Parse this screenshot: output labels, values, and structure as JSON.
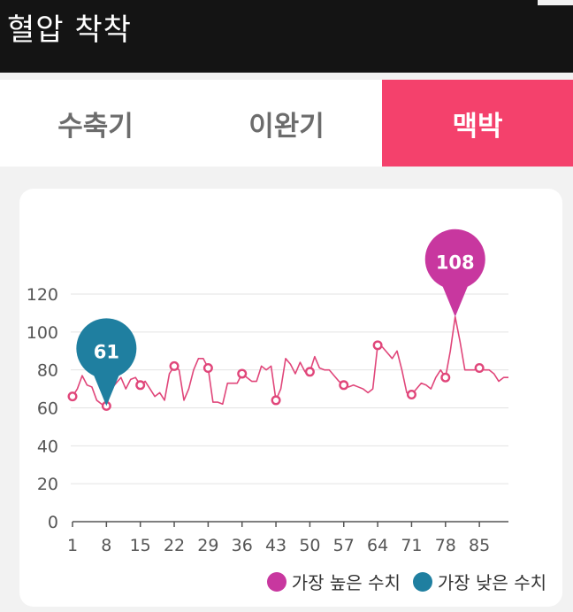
{
  "header": {
    "title": "혈압 착착"
  },
  "tabs": [
    {
      "label": "수축기",
      "active": false
    },
    {
      "label": "이완기",
      "active": false
    },
    {
      "label": "맥박",
      "active": true
    }
  ],
  "colors": {
    "active_tab": "#f4416c",
    "line": "#e0467a",
    "high_marker": "#c8379f",
    "low_marker": "#1f7fa0"
  },
  "chart_data": {
    "type": "line",
    "title": "",
    "xlabel": "",
    "ylabel": "",
    "ylim": [
      0,
      120
    ],
    "xlim": [
      1,
      91
    ],
    "yticks": [
      0,
      20,
      40,
      60,
      80,
      100,
      120
    ],
    "xticks": [
      1,
      8,
      15,
      22,
      29,
      36,
      43,
      50,
      57,
      64,
      71,
      78,
      85
    ],
    "grid": true,
    "series": [
      {
        "x": [
          1,
          2,
          3,
          4,
          5,
          6,
          7,
          8,
          9,
          10,
          11,
          12,
          13,
          14,
          15,
          16,
          17,
          18,
          19,
          20,
          21,
          22,
          23,
          24,
          25,
          26,
          27,
          28,
          29,
          30,
          31,
          32,
          33,
          34,
          35,
          36,
          37,
          38,
          39,
          40,
          41,
          42,
          43,
          44,
          45,
          46,
          47,
          48,
          49,
          50,
          51,
          52,
          53,
          54,
          55,
          56,
          57,
          58,
          59,
          60,
          61,
          62,
          63,
          64,
          65,
          66,
          67,
          68,
          69,
          70,
          71,
          72,
          73,
          74,
          75,
          76,
          77,
          78,
          79,
          80,
          81,
          82,
          83,
          84,
          85,
          86,
          87,
          88,
          89,
          90,
          91
        ],
        "values": [
          66,
          70,
          77,
          72,
          71,
          64,
          62,
          61,
          70,
          73,
          76,
          70,
          75,
          76,
          72,
          74,
          70,
          66,
          68,
          64,
          78,
          82,
          80,
          64,
          70,
          80,
          86,
          86,
          81,
          63,
          63,
          62,
          73,
          73,
          73,
          78,
          76,
          74,
          74,
          82,
          80,
          82,
          64,
          70,
          86,
          83,
          78,
          84,
          79,
          79,
          87,
          81,
          80,
          80,
          77,
          74,
          72,
          71,
          72,
          71,
          70,
          68,
          70,
          93,
          92,
          89,
          86,
          90,
          80,
          68,
          67,
          70,
          73,
          72,
          70,
          76,
          80,
          76,
          90,
          108,
          95,
          80,
          80,
          80,
          81,
          80,
          80,
          78,
          74,
          76,
          76
        ],
        "markers": [
          1,
          8,
          15,
          22,
          29,
          36,
          43,
          50,
          57,
          64,
          71,
          78,
          85
        ]
      }
    ],
    "annotations": [
      {
        "type": "max",
        "x": 80,
        "value": 108,
        "label": "108"
      },
      {
        "type": "min",
        "x": 8,
        "value": 61,
        "label": "61"
      }
    ],
    "legend": {
      "position": "bottom-right",
      "entries": [
        {
          "label": "가장 높은 수치",
          "color": "#c8379f"
        },
        {
          "label": "가장 낮은 수치",
          "color": "#1f7fa0"
        }
      ]
    }
  }
}
